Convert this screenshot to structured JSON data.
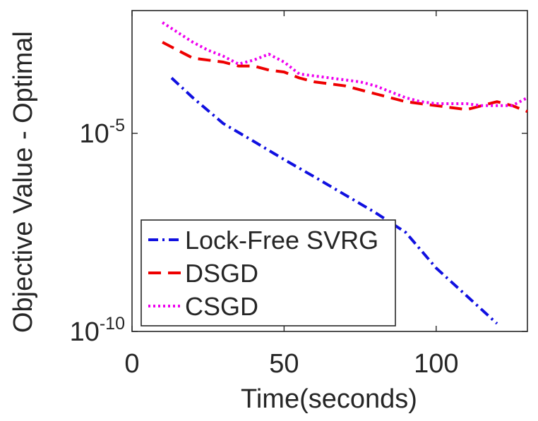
{
  "chart_data": {
    "type": "line",
    "title": "",
    "xlabel": "Time(seconds)",
    "ylabel": "Objective Value - Optimal",
    "yscale": "log",
    "xlim": [
      0,
      130
    ],
    "ylim_exp": [
      -10,
      -1.9
    ],
    "x_ticks": [
      {
        "value": 0,
        "label": "0"
      },
      {
        "value": 50,
        "label": "50"
      },
      {
        "value": 100,
        "label": "100"
      }
    ],
    "y_ticks": [
      {
        "exp": -5,
        "base": "10",
        "sup": "-5"
      },
      {
        "exp": -10,
        "base": "10",
        "sup": "-10"
      }
    ],
    "legend_position": "bottom-left",
    "series": [
      {
        "name": "Lock-Free SVRG",
        "color": "#1010e0",
        "style": "dashdot",
        "x": [
          13,
          20,
          30,
          40,
          50,
          60,
          70,
          80,
          90,
          100,
          110,
          120
        ],
        "log10_y": [
          -3.6,
          -4.1,
          -4.75,
          -5.2,
          -5.66,
          -6.1,
          -6.55,
          -7.0,
          -7.5,
          -8.4,
          -9.1,
          -9.8
        ]
      },
      {
        "name": "DSGD",
        "color": "#ee0000",
        "style": "dashed",
        "x": [
          10,
          15,
          20,
          30,
          35,
          40,
          45,
          50,
          55,
          60,
          70,
          80,
          90,
          100,
          105,
          110,
          115,
          120,
          125,
          130
        ],
        "log10_y": [
          -2.7,
          -2.9,
          -3.1,
          -3.2,
          -3.3,
          -3.3,
          -3.4,
          -3.45,
          -3.6,
          -3.7,
          -3.8,
          -4.0,
          -4.2,
          -4.3,
          -4.35,
          -4.4,
          -4.3,
          -4.2,
          -4.3,
          -4.45
        ]
      },
      {
        "name": "CSGD",
        "color": "#ee00ee",
        "style": "dotted",
        "x": [
          10,
          15,
          20,
          25,
          30,
          35,
          40,
          45,
          50,
          55,
          60,
          65,
          70,
          75,
          80,
          85,
          90,
          95,
          100,
          105,
          110,
          115,
          120,
          125,
          130
        ],
        "log10_y": [
          -2.2,
          -2.45,
          -2.7,
          -2.9,
          -3.05,
          -3.25,
          -3.15,
          -3.0,
          -3.2,
          -3.5,
          -3.55,
          -3.6,
          -3.65,
          -3.7,
          -3.8,
          -3.95,
          -4.1,
          -4.2,
          -4.25,
          -4.25,
          -4.25,
          -4.3,
          -4.3,
          -4.3,
          -4.1
        ]
      }
    ]
  }
}
